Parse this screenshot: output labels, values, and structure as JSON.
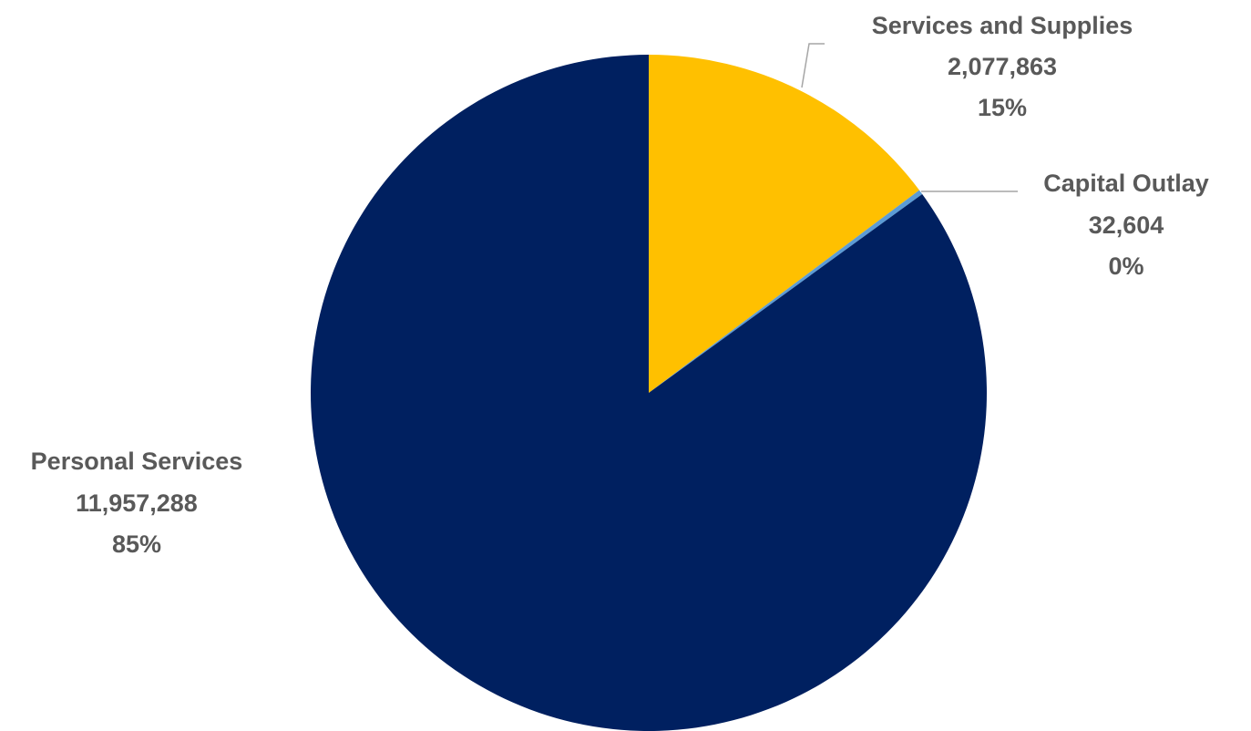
{
  "chart_data": {
    "type": "pie",
    "title": "",
    "legend": "none",
    "start_angle_deg": 0,
    "direction": "clockwise",
    "slices": [
      {
        "label": "Services and Supplies",
        "value": 2077863,
        "value_text": "2,077,863",
        "percent_text": "15%",
        "color": "#FFC000"
      },
      {
        "label": "Capital Outlay",
        "value": 32604,
        "value_text": "32,604",
        "percent_text": "0%",
        "color": "#5B9BD5"
      },
      {
        "label": "Personal Services",
        "value": 11957288,
        "value_text": "11,957,288",
        "percent_text": "85%",
        "color": "#002060"
      }
    ]
  }
}
